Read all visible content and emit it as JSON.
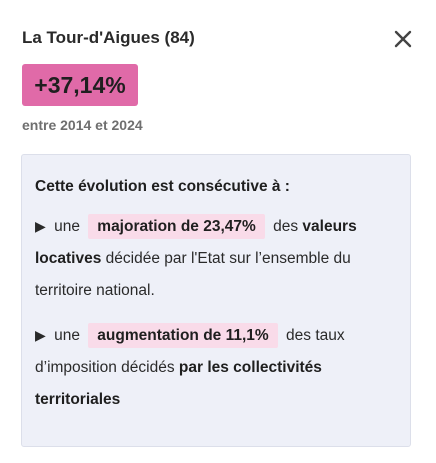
{
  "header": {
    "title": "La Tour-d'Aigues (84)",
    "close_icon": "close-icon"
  },
  "badge": {
    "value": "+37,14%",
    "color": "#e06aa8"
  },
  "period": "entre 2014 et 2024",
  "explanation": {
    "title": "Cette évolution est consécutive à :",
    "bullet_glyph": "▶",
    "items": [
      {
        "prefix": "une",
        "highlight": "majoration de 23,47%",
        "text_a": "des",
        "bold_a": "valeurs locatives",
        "text_b": "décidée par l'Etat sur l’ensemble du territoire national."
      },
      {
        "prefix": "une",
        "highlight": "augmentation de 11,1%",
        "text_a": "des taux d’imposition décidés",
        "bold_a": "par les collectivités territoriales"
      }
    ]
  },
  "colors": {
    "highlight_bg": "#f9dbe9",
    "box_bg": "#eef0f8"
  }
}
